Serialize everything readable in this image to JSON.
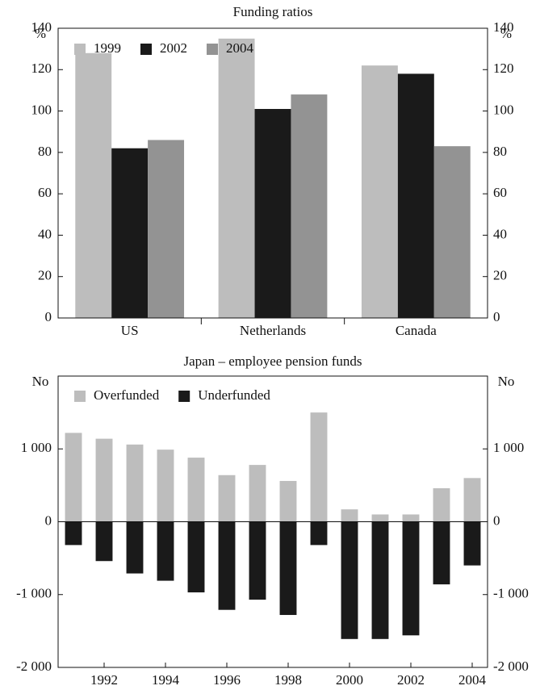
{
  "chart_data": [
    {
      "type": "bar",
      "title": "Funding ratios",
      "y_label": "%",
      "categories": [
        "US",
        "Netherlands",
        "Canada"
      ],
      "series": [
        {
          "name": "1999",
          "color": "#bdbdbd",
          "values": [
            128,
            135,
            122
          ]
        },
        {
          "name": "2002",
          "color": "#1a1a1a",
          "values": [
            82,
            101,
            118
          ]
        },
        {
          "name": "2004",
          "color": "#939393",
          "values": [
            86,
            108,
            83
          ]
        }
      ],
      "ylim": [
        0,
        140
      ],
      "yticks": [
        0,
        20,
        40,
        60,
        80,
        100,
        120,
        140
      ],
      "legend": "top-left"
    },
    {
      "type": "bar",
      "stacked": true,
      "title": "Japan – employee pension funds",
      "y_label": "No",
      "categories": [
        null,
        "1992",
        null,
        "1994",
        null,
        "1996",
        null,
        "1998",
        null,
        "2000",
        null,
        "2002",
        null,
        "2004"
      ],
      "series": [
        {
          "name": "Overfunded",
          "color": "#bdbdbd",
          "values": [
            1220,
            1140,
            1060,
            990,
            880,
            640,
            780,
            560,
            1500,
            170,
            100,
            100,
            460,
            600
          ]
        },
        {
          "name": "Underfunded",
          "color": "#1a1a1a",
          "values": [
            -320,
            -540,
            -710,
            -810,
            -970,
            -1210,
            -1070,
            -1280,
            -320,
            -1610,
            -1610,
            -1560,
            -860,
            -600
          ]
        }
      ],
      "ylim": [
        -2000,
        2000
      ],
      "yticks": [
        {
          "value": -2000,
          "label": "-2 000"
        },
        {
          "value": -1000,
          "label": "-1 000"
        },
        0,
        {
          "value": 1000,
          "label": "1 000"
        }
      ],
      "legend": "top-left"
    }
  ]
}
